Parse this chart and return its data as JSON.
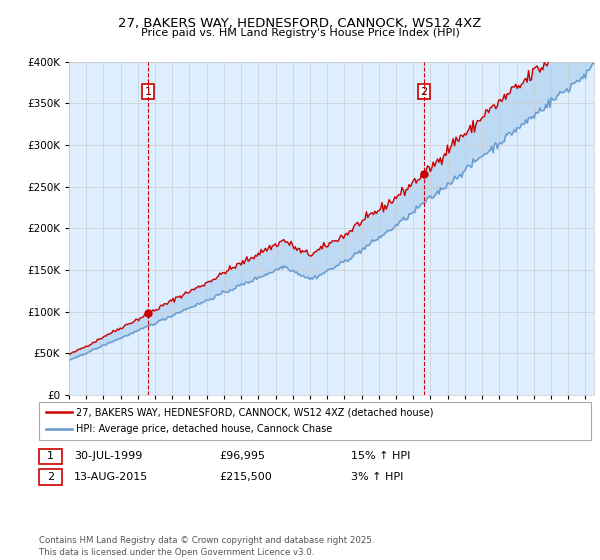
{
  "title": "27, BAKERS WAY, HEDNESFORD, CANNOCK, WS12 4XZ",
  "subtitle": "Price paid vs. HM Land Registry's House Price Index (HPI)",
  "legend_label_red": "27, BAKERS WAY, HEDNESFORD, CANNOCK, WS12 4XZ (detached house)",
  "legend_label_blue": "HPI: Average price, detached house, Cannock Chase",
  "annotation1_date": "30-JUL-1999",
  "annotation1_price": "£96,995",
  "annotation1_hpi": "15% ↑ HPI",
  "annotation1_year": 1999.58,
  "annotation2_date": "13-AUG-2015",
  "annotation2_price": "£215,500",
  "annotation2_hpi": "3% ↑ HPI",
  "annotation2_year": 2015.62,
  "footer": "Contains HM Land Registry data © Crown copyright and database right 2025.\nThis data is licensed under the Open Government Licence v3.0.",
  "red_color": "#cc0000",
  "blue_color": "#6699cc",
  "fill_color": "#ddeeff",
  "grid_color": "#cccccc",
  "vline_color": "#cc0000",
  "background_color": "#ffffff",
  "ylim": [
    0,
    400000
  ],
  "xmin": 1995.0,
  "xmax": 2025.5
}
